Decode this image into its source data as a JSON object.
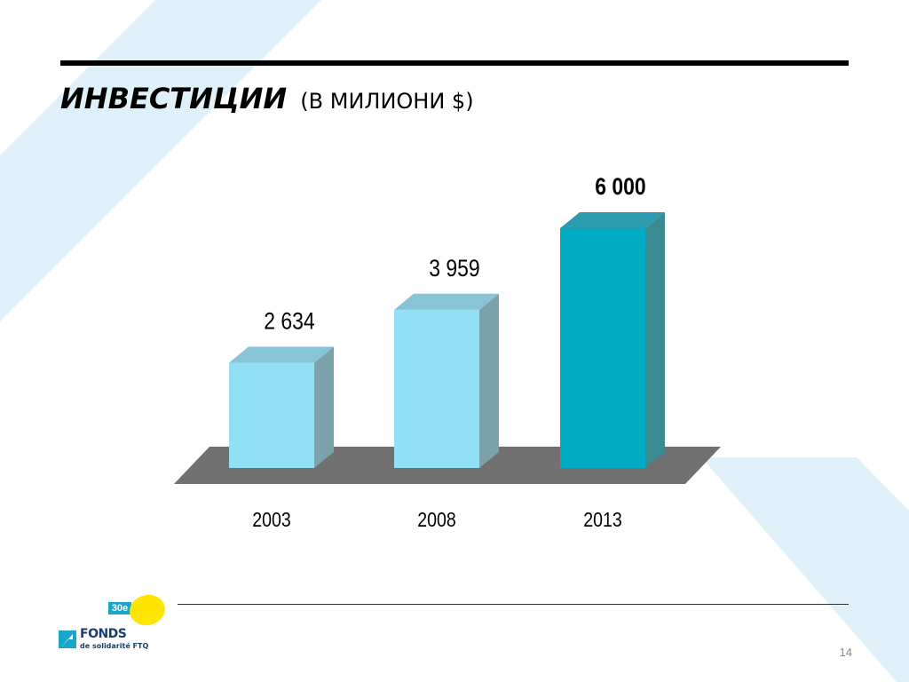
{
  "slide": {
    "title_main": "ИНВЕСТИЦИИ",
    "title_sub": "(В МИЛИОНИ $)",
    "page_number": "14"
  },
  "logo": {
    "badge": "30e",
    "name": "FONDS",
    "subtitle": "de solidarité FTQ"
  },
  "colors": {
    "background_stripe": "#dff0f8",
    "bar_light_front": "#92e0f5",
    "bar_light_side": "#7ba2ab",
    "bar_light_top": "#86c4d6",
    "bar_dark_front": "#00acc3",
    "bar_dark_side": "#3a8a92",
    "bar_dark_top": "#2a9cad",
    "floor": "#707070"
  },
  "chart_data": {
    "type": "bar",
    "categories": [
      "2003",
      "2008",
      "2013"
    ],
    "values": [
      2634,
      3959,
      6000
    ],
    "value_labels": [
      "2 634",
      "3 959",
      "6 000"
    ],
    "highlight_index": 2,
    "title": "ИНВЕСТИЦИИ (В МИЛИОНИ $)",
    "xlabel": "",
    "ylabel": "",
    "ylim": [
      0,
      6000
    ],
    "grid": false,
    "legend": false,
    "style": "3d-columns"
  }
}
